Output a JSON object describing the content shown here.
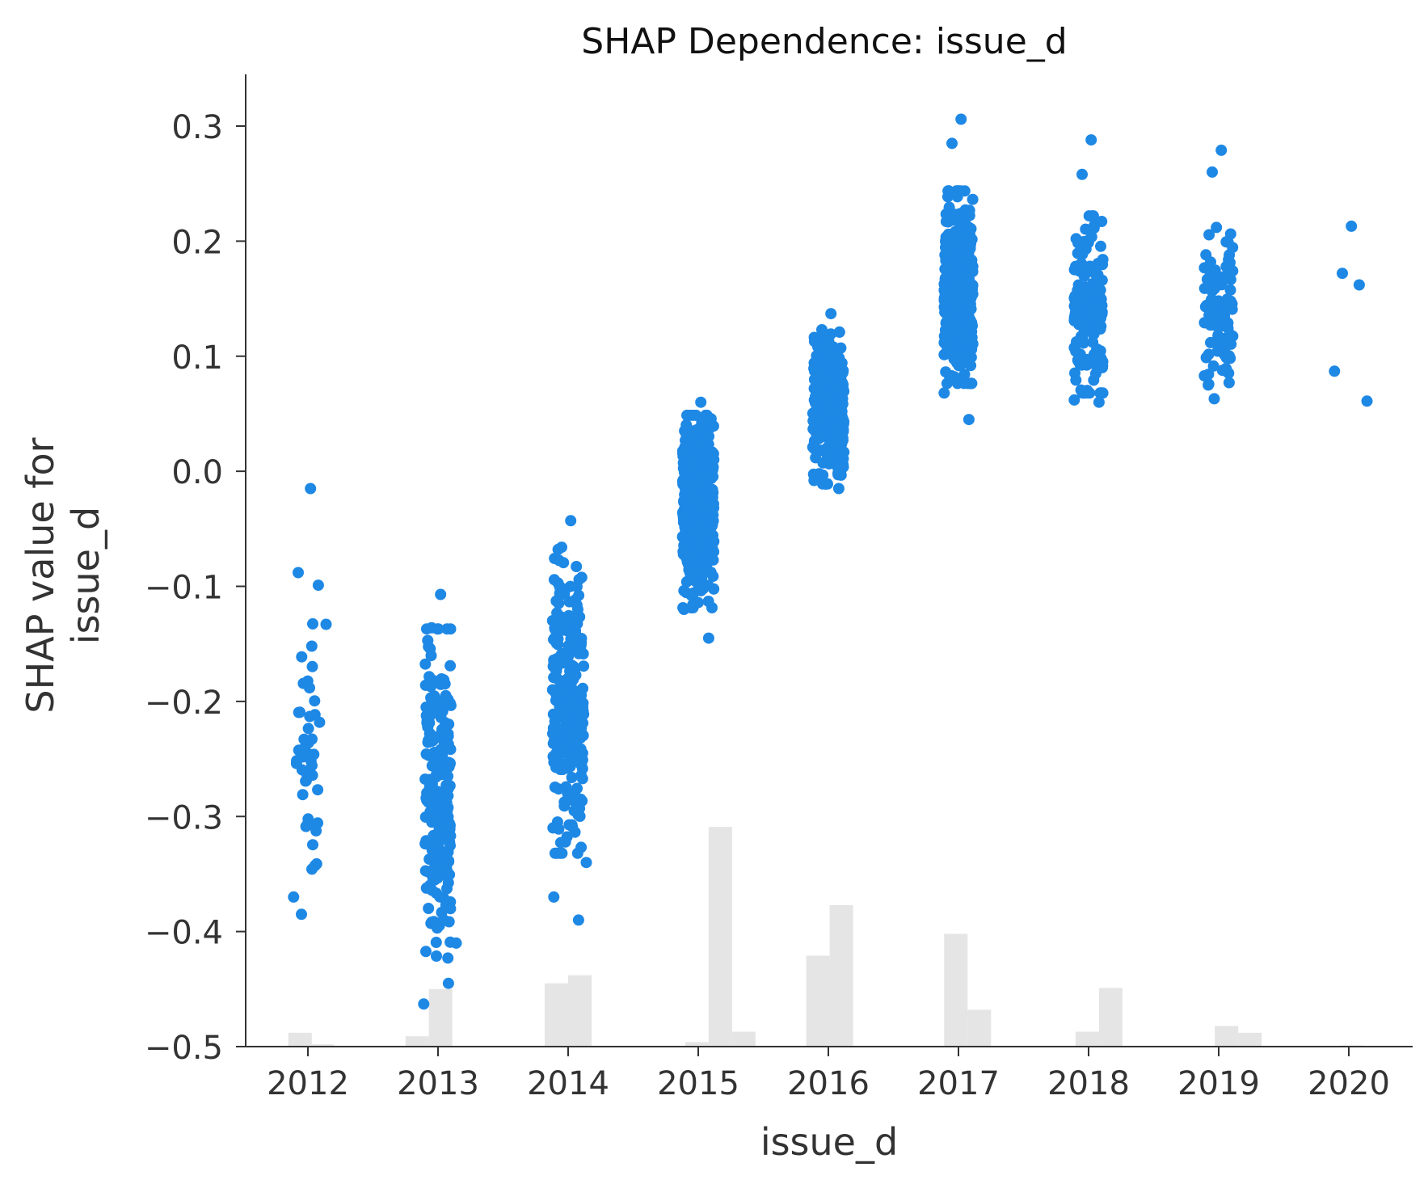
{
  "chart_data": {
    "type": "scatter",
    "title": "SHAP Dependence: issue_d",
    "xlabel": "issue_d",
    "ylabel_lines": [
      "SHAP value for",
      "issue_d"
    ],
    "x_ticks": [
      2012,
      2013,
      2014,
      2015,
      2016,
      2017,
      2018,
      2019,
      2020
    ],
    "y_ticks": [
      0.3,
      0.2,
      0.1,
      0.0,
      -0.1,
      -0.2,
      -0.3,
      -0.4,
      -0.5
    ],
    "y_tick_labels": [
      "0.3",
      "0.2",
      "0.1",
      "0.0",
      "−0.1",
      "−0.2",
      "−0.3",
      "−0.4",
      "−0.5"
    ],
    "xlim": [
      2011.5,
      2020.45
    ],
    "ylim": [
      -0.5,
      0.345
    ],
    "grid": false,
    "point_color": "#1e88e5",
    "histogram_color": "#e5e5e5",
    "axis_color": "#333333",
    "clusters": [
      {
        "year": 2012,
        "n": 45,
        "center": -0.23,
        "spread": 0.07,
        "jitter": 0.09,
        "extremes": [
          -0.015,
          -0.385,
          -0.099,
          -0.37,
          -0.133
        ]
      },
      {
        "year": 2013,
        "n": 230,
        "center": -0.28,
        "spread": 0.065,
        "jitter": 0.1,
        "extremes": [
          -0.107,
          -0.136,
          -0.445,
          -0.463,
          -0.41
        ]
      },
      {
        "year": 2014,
        "n": 260,
        "center": -0.2,
        "spread": 0.06,
        "jitter": 0.12,
        "extremes": [
          -0.043,
          -0.066,
          -0.39,
          -0.37,
          -0.34
        ]
      },
      {
        "year": 2015,
        "n": 420,
        "center": -0.035,
        "spread": 0.038,
        "jitter": 0.12,
        "extremes": [
          0.06,
          0.035,
          -0.145,
          -0.12
        ]
      },
      {
        "year": 2016,
        "n": 300,
        "center": 0.055,
        "spread": 0.03,
        "jitter": 0.12,
        "extremes": [
          0.137,
          0.123,
          -0.015,
          -0.008
        ]
      },
      {
        "year": 2017,
        "n": 420,
        "center": 0.16,
        "spread": 0.038,
        "jitter": 0.11,
        "extremes": [
          0.306,
          0.285,
          0.045,
          0.068
        ]
      },
      {
        "year": 2018,
        "n": 180,
        "center": 0.145,
        "spread": 0.035,
        "jitter": 0.11,
        "extremes": [
          0.288,
          0.258,
          0.06,
          0.062
        ]
      },
      {
        "year": 2019,
        "n": 100,
        "center": 0.14,
        "spread": 0.035,
        "jitter": 0.11,
        "extremes": [
          0.279,
          0.26,
          0.077,
          0.083
        ]
      },
      {
        "year": 2020,
        "n": 0,
        "center": 0.15,
        "spread": 0.0,
        "jitter": 0.0,
        "extremes": [
          0.213,
          0.172,
          0.162,
          0.087,
          0.061
        ]
      }
    ],
    "histogram": [
      {
        "x0": 2011.85,
        "x1": 2012.03,
        "v": 0.012
      },
      {
        "x0": 2012.03,
        "x1": 2012.2,
        "v": 0.002
      },
      {
        "x0": 2012.75,
        "x1": 2012.93,
        "v": 0.009
      },
      {
        "x0": 2012.93,
        "x1": 2013.11,
        "v": 0.05
      },
      {
        "x0": 2013.82,
        "x1": 2014.0,
        "v": 0.055
      },
      {
        "x0": 2014.0,
        "x1": 2014.18,
        "v": 0.062
      },
      {
        "x0": 2014.9,
        "x1": 2015.08,
        "v": 0.004
      },
      {
        "x0": 2015.08,
        "x1": 2015.26,
        "v": 0.191
      },
      {
        "x0": 2015.26,
        "x1": 2015.44,
        "v": 0.013
      },
      {
        "x0": 2015.83,
        "x1": 2016.01,
        "v": 0.079
      },
      {
        "x0": 2016.01,
        "x1": 2016.19,
        "v": 0.123
      },
      {
        "x0": 2016.89,
        "x1": 2017.07,
        "v": 0.098
      },
      {
        "x0": 2017.07,
        "x1": 2017.25,
        "v": 0.032
      },
      {
        "x0": 2017.9,
        "x1": 2018.08,
        "v": 0.013
      },
      {
        "x0": 2018.08,
        "x1": 2018.26,
        "v": 0.051
      },
      {
        "x0": 2018.97,
        "x1": 2019.15,
        "v": 0.018
      },
      {
        "x0": 2019.15,
        "x1": 2019.33,
        "v": 0.012
      },
      {
        "x0": 2019.93,
        "x1": 2020.11,
        "v": 0.001
      }
    ]
  }
}
